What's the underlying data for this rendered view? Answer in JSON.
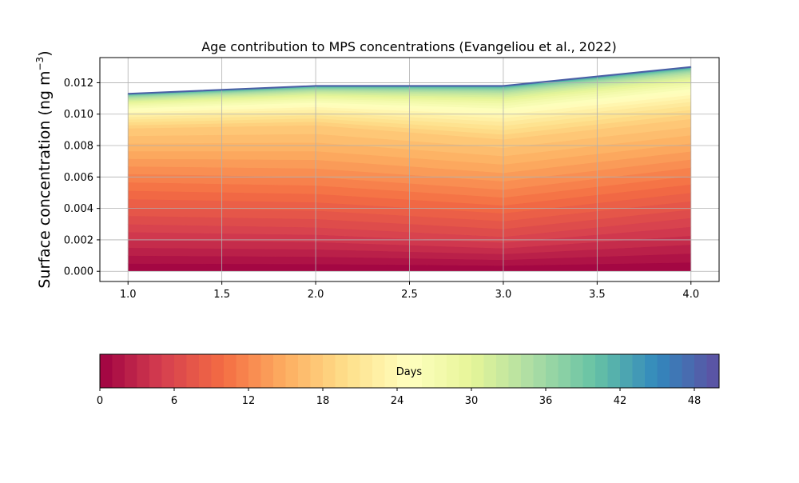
{
  "chart_data": {
    "type": "area",
    "title": "Age contribution to MPS concentrations (Evangeliou et al., 2022)",
    "xlabel": "",
    "ylabel_main": "Surface concentration (ng m",
    "ylabel_exp": "−3",
    "ylabel_close": ")",
    "x": [
      1.0,
      2.0,
      3.0,
      4.0
    ],
    "xlim": [
      0.85,
      4.15
    ],
    "ylim": [
      -0.00065,
      0.0136
    ],
    "xticks": [
      "1.0",
      "1.5",
      "2.0",
      "2.5",
      "3.0",
      "3.5",
      "4.0"
    ],
    "xtick_values": [
      1.0,
      1.5,
      2.0,
      2.5,
      3.0,
      3.5,
      4.0
    ],
    "yticks": [
      "0.000",
      "0.002",
      "0.004",
      "0.006",
      "0.008",
      "0.010",
      "0.012"
    ],
    "ytick_values": [
      0.0,
      0.002,
      0.004,
      0.006,
      0.008,
      0.01,
      0.012
    ],
    "grid": true,
    "total_line_color": "#4a5fa5",
    "layer_count": 50,
    "layer_days_max": 50,
    "total": [
      0.0113,
      0.0118,
      0.0118,
      0.013
    ],
    "anchor_levels": [
      [
        0.0,
        0.0,
        0.0,
        0.0
      ],
      [
        0.003,
        0.0028,
        0.0022,
        0.0034
      ],
      [
        0.0062,
        0.006,
        0.0052,
        0.0066
      ],
      [
        0.0091,
        0.0093,
        0.0084,
        0.0097
      ],
      [
        0.0113,
        0.0118,
        0.0118,
        0.013
      ]
    ],
    "anchor_days": [
      0,
      6,
      12,
      18,
      50
    ]
  },
  "colorbar": {
    "label": "Days",
    "ticks": [
      "0",
      "6",
      "12",
      "18",
      "24",
      "30",
      "36",
      "42",
      "48"
    ],
    "tick_values": [
      0,
      6,
      12,
      18,
      24,
      30,
      36,
      42,
      48
    ],
    "min": 0,
    "max": 50,
    "colormap": "Spectral",
    "stops": [
      "#9e0142",
      "#d53e4f",
      "#f46d43",
      "#fdae61",
      "#fee08b",
      "#ffffbf",
      "#e6f598",
      "#abdda4",
      "#66c2a5",
      "#3288bd",
      "#5e4fa2"
    ]
  }
}
